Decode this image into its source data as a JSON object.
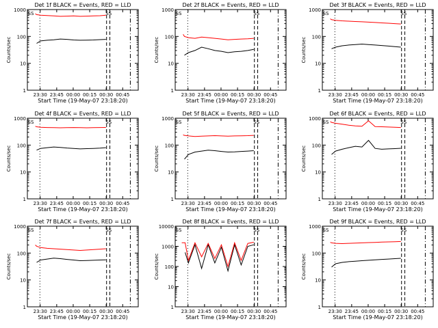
{
  "figure": {
    "start_time_label": "Start Time (19-May-07 23:18:20)",
    "ylabel": "Counts/sec",
    "x_ticks": [
      "23:30",
      "23:45",
      "00:00",
      "00:15",
      "00:30",
      "00:45"
    ],
    "x_tick_hours": [
      0.1944,
      0.4444,
      0.6944,
      0.9444,
      1.1944,
      1.4444
    ],
    "event_color": "#000000",
    "lld_color": "#ff0000",
    "marker_label": "SS",
    "xlim_hours": [
      0,
      1.68
    ],
    "markers_hours": {
      "dotted": 0.19,
      "dashed_1": 1.2,
      "dashed_2": 1.25,
      "dashdot": 1.56
    }
  },
  "chart_data": [
    {
      "type": "line",
      "title": "Det 1f BLACK = Events, RED = LLD",
      "yscale": "log",
      "ylim": [
        1,
        1000
      ],
      "y_ticks": [
        1,
        10,
        100,
        1000
      ],
      "x": [
        0.12,
        0.14,
        0.2,
        0.3,
        0.4,
        0.5,
        0.6,
        0.7,
        0.8,
        0.9,
        1.0,
        1.1,
        1.19
      ],
      "series": [
        {
          "values": [
            null,
            55,
            68,
            72,
            75,
            80,
            78,
            74,
            72,
            73,
            74,
            76,
            78
          ]
        },
        {
          "values": [
            700,
            650,
            620,
            600,
            580,
            560,
            570,
            580,
            560,
            570,
            580,
            590,
            620
          ]
        }
      ]
    },
    {
      "type": "line",
      "title": "Det 2f BLACK = Events, RED = LLD",
      "yscale": "log",
      "ylim": [
        1,
        1000
      ],
      "y_ticks": [
        1,
        10,
        100,
        1000
      ],
      "x": [
        0.12,
        0.14,
        0.2,
        0.3,
        0.4,
        0.5,
        0.6,
        0.7,
        0.8,
        0.9,
        1.0,
        1.1,
        1.19
      ],
      "series": [
        {
          "values": [
            null,
            20,
            25,
            30,
            40,
            35,
            30,
            28,
            25,
            27,
            28,
            30,
            33
          ]
        },
        {
          "values": [
            120,
            100,
            90,
            85,
            95,
            90,
            85,
            80,
            75,
            78,
            80,
            82,
            85
          ]
        }
      ]
    },
    {
      "type": "line",
      "title": "Det 3f BLACK = Events, RED = LLD",
      "yscale": "log",
      "ylim": [
        1,
        1000
      ],
      "y_ticks": [
        1,
        10,
        100,
        1000
      ],
      "x": [
        0.12,
        0.14,
        0.2,
        0.3,
        0.4,
        0.5,
        0.6,
        0.7,
        0.8,
        0.9,
        1.0,
        1.1,
        1.19
      ],
      "series": [
        {
          "values": [
            null,
            35,
            40,
            45,
            48,
            50,
            52,
            50,
            48,
            46,
            44,
            42,
            40
          ]
        },
        {
          "values": [
            450,
            420,
            400,
            380,
            370,
            360,
            350,
            340,
            330,
            320,
            310,
            300,
            290
          ]
        }
      ]
    },
    {
      "type": "line",
      "title": "Det 4f BLACK = Events, RED = LLD",
      "yscale": "log",
      "ylim": [
        1,
        1000
      ],
      "y_ticks": [
        1,
        10,
        100,
        1000
      ],
      "x": [
        0.12,
        0.14,
        0.2,
        0.3,
        0.4,
        0.5,
        0.6,
        0.7,
        0.8,
        0.9,
        1.0,
        1.1,
        1.19
      ],
      "series": [
        {
          "values": [
            null,
            65,
            75,
            80,
            85,
            82,
            78,
            75,
            72,
            74,
            75,
            77,
            80
          ]
        },
        {
          "values": [
            500,
            480,
            460,
            450,
            445,
            440,
            445,
            450,
            445,
            440,
            445,
            450,
            455
          ]
        }
      ]
    },
    {
      "type": "line",
      "title": "Det 5f BLACK = Events, RED = LLD",
      "yscale": "log",
      "ylim": [
        1,
        1000
      ],
      "y_ticks": [
        1,
        10,
        100,
        1000
      ],
      "x": [
        0.12,
        0.14,
        0.2,
        0.3,
        0.4,
        0.5,
        0.6,
        0.7,
        0.8,
        0.9,
        1.0,
        1.1,
        1.19
      ],
      "series": [
        {
          "values": [
            null,
            30,
            45,
            55,
            60,
            65,
            62,
            58,
            55,
            56,
            58,
            60,
            62
          ]
        },
        {
          "values": [
            240,
            230,
            220,
            210,
            215,
            220,
            225,
            220,
            215,
            220,
            222,
            225,
            230
          ]
        }
      ]
    },
    {
      "type": "line",
      "title": "Det 6f BLACK = Events, RED = LLD",
      "yscale": "log",
      "ylim": [
        1,
        1000
      ],
      "y_ticks": [
        1,
        10,
        100,
        1000
      ],
      "x": [
        0.12,
        0.14,
        0.2,
        0.3,
        0.4,
        0.5,
        0.6,
        0.7,
        0.8,
        0.9,
        1.0,
        1.1,
        1.19
      ],
      "series": [
        {
          "values": [
            null,
            45,
            60,
            70,
            80,
            90,
            85,
            150,
            75,
            70,
            72,
            74,
            76
          ]
        },
        {
          "values": [
            750,
            700,
            650,
            600,
            550,
            520,
            500,
            800,
            490,
            480,
            470,
            460,
            450
          ]
        }
      ]
    },
    {
      "type": "line",
      "title": "Det 7f BLACK = Events, RED = LLD",
      "yscale": "log",
      "ylim": [
        1,
        1000
      ],
      "y_ticks": [
        1,
        10,
        100,
        1000
      ],
      "x": [
        0.12,
        0.14,
        0.2,
        0.3,
        0.4,
        0.5,
        0.6,
        0.7,
        0.8,
        0.9,
        1.0,
        1.1,
        1.19
      ],
      "series": [
        {
          "values": [
            null,
            45,
            55,
            60,
            65,
            62,
            58,
            55,
            52,
            53,
            54,
            55,
            56
          ]
        },
        {
          "values": [
            200,
            180,
            160,
            150,
            145,
            140,
            135,
            130,
            125,
            130,
            135,
            140,
            145
          ]
        }
      ]
    },
    {
      "type": "line",
      "title": "Det 8f BLACK = Events, RED = LLD",
      "yscale": "log",
      "ylim": [
        1,
        10000
      ],
      "y_ticks": [
        1,
        10,
        100,
        1000,
        10000
      ],
      "x": [
        0.1,
        0.15,
        0.2,
        0.3,
        0.4,
        0.5,
        0.6,
        0.7,
        0.8,
        0.9,
        1.0,
        1.1,
        1.19
      ],
      "series": [
        {
          "values": [
            null,
            500,
            150,
            1200,
            80,
            1200,
            150,
            900,
            60,
            1200,
            120,
            1000,
            1200
          ]
        },
        {
          "values": [
            1500,
            1500,
            200,
            1500,
            300,
            1400,
            250,
            1200,
            100,
            1500,
            200,
            1400,
            1600
          ]
        }
      ]
    },
    {
      "type": "line",
      "title": "Det 9f BLACK = Events, RED = LLD",
      "yscale": "log",
      "ylim": [
        1,
        1000
      ],
      "y_ticks": [
        1,
        10,
        100,
        1000
      ],
      "x": [
        0.12,
        0.14,
        0.2,
        0.3,
        0.4,
        0.5,
        0.6,
        0.7,
        0.8,
        0.9,
        1.0,
        1.1,
        1.19
      ],
      "series": [
        {
          "values": [
            null,
            30,
            40,
            45,
            48,
            50,
            52,
            54,
            56,
            58,
            60,
            62,
            64
          ]
        },
        {
          "values": [
            250,
            240,
            230,
            225,
            230,
            235,
            240,
            245,
            250,
            255,
            260,
            265,
            270
          ]
        }
      ]
    }
  ]
}
